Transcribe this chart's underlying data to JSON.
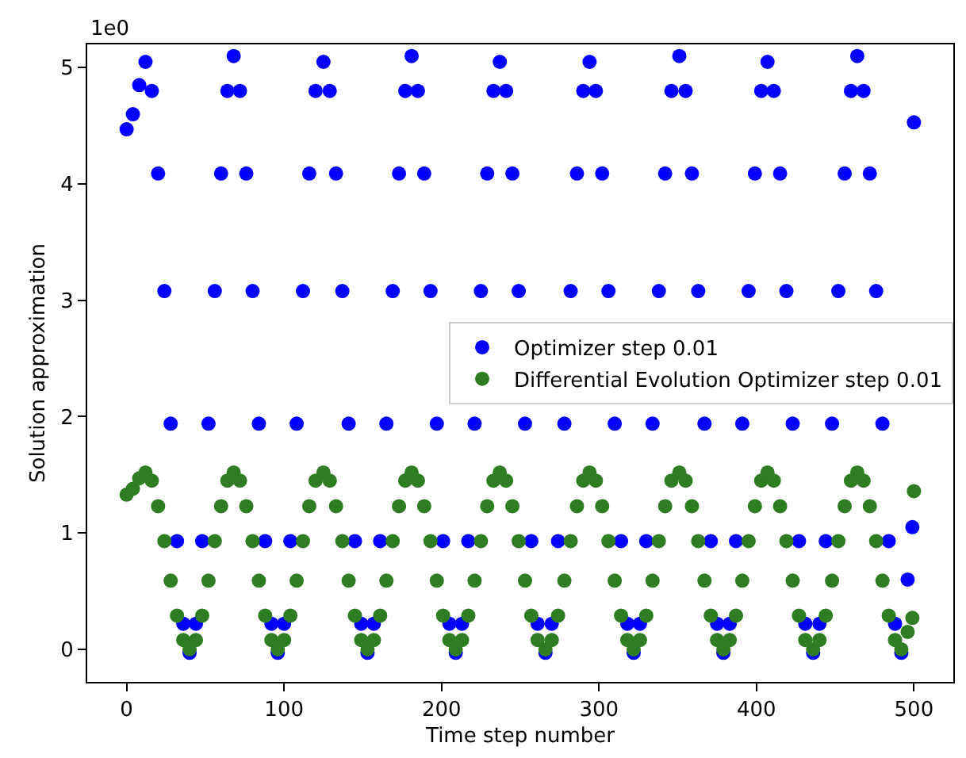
{
  "chart_data": {
    "type": "scatter",
    "xlabel": "Time step number",
    "ylabel": "Solution approximation",
    "annotations": [
      "1e0"
    ],
    "x": [
      0,
      4,
      8,
      12,
      16,
      20,
      24,
      28,
      32,
      36,
      40,
      44,
      48,
      52,
      56,
      60,
      64,
      68,
      72,
      76,
      80,
      84,
      88,
      92,
      96,
      100,
      104,
      108,
      112,
      116,
      120,
      125,
      129,
      133,
      137,
      141,
      145,
      149,
      153,
      157,
      161,
      165,
      169,
      173,
      177,
      181,
      185,
      189,
      193,
      197,
      201,
      205,
      209,
      213,
      217,
      221,
      225,
      229,
      233,
      237,
      241,
      245,
      249,
      253,
      257,
      261,
      266,
      270,
      274,
      278,
      282,
      286,
      290,
      294,
      298,
      302,
      306,
      310,
      314,
      318,
      322,
      326,
      330,
      334,
      338,
      342,
      346,
      351,
      355,
      359,
      363,
      367,
      371,
      375,
      379,
      383,
      387,
      391,
      395,
      399,
      403,
      407,
      411,
      415,
      419,
      423,
      427,
      431,
      436,
      440,
      444,
      448,
      452,
      456,
      460,
      464,
      468,
      472,
      476,
      480,
      484,
      488,
      492,
      496,
      499,
      500
    ],
    "series": [
      {
        "name": "Optimizer step 0.01",
        "color": "#0000ff",
        "values": [
          4.47,
          4.6,
          4.85,
          5.05,
          4.8,
          4.09,
          3.08,
          1.94,
          0.93,
          0.22,
          -0.03,
          0.22,
          0.93,
          1.94,
          3.08,
          4.09,
          4.8,
          5.1,
          4.8,
          4.09,
          3.08,
          1.94,
          0.93,
          0.22,
          -0.03,
          0.22,
          0.93,
          1.94,
          3.08,
          4.09,
          4.8,
          5.05,
          4.8,
          4.09,
          3.08,
          1.94,
          0.93,
          0.22,
          -0.03,
          0.22,
          0.93,
          1.94,
          3.08,
          4.09,
          4.8,
          5.1,
          4.8,
          4.09,
          3.08,
          1.94,
          0.93,
          0.22,
          -0.03,
          0.22,
          0.93,
          1.94,
          3.08,
          4.09,
          4.8,
          5.05,
          4.8,
          4.09,
          3.08,
          1.94,
          0.93,
          0.22,
          -0.03,
          0.22,
          0.93,
          1.94,
          3.08,
          4.09,
          4.8,
          5.05,
          4.8,
          4.09,
          3.08,
          1.94,
          0.93,
          0.22,
          -0.03,
          0.22,
          0.93,
          1.94,
          3.08,
          4.09,
          4.8,
          5.1,
          4.8,
          4.09,
          3.08,
          1.94,
          0.93,
          0.22,
          -0.03,
          0.22,
          0.93,
          1.94,
          3.08,
          4.09,
          4.8,
          5.05,
          4.8,
          4.09,
          3.08,
          1.94,
          0.93,
          0.22,
          -0.03,
          0.22,
          0.93,
          1.94,
          3.08,
          4.09,
          4.8,
          5.1,
          4.8,
          4.09,
          3.08,
          1.94,
          0.93,
          0.22,
          -0.03,
          0.6,
          1.05,
          4.53
        ]
      },
      {
        "name": "Differential Evolution Optimizer step 0.01",
        "color": "#2e7d22",
        "values": [
          1.33,
          1.38,
          1.47,
          1.52,
          1.45,
          1.23,
          0.93,
          0.59,
          0.29,
          0.08,
          0,
          0.08,
          0.29,
          0.59,
          0.93,
          1.23,
          1.45,
          1.52,
          1.45,
          1.23,
          0.93,
          0.59,
          0.29,
          0.08,
          0,
          0.08,
          0.29,
          0.59,
          0.93,
          1.23,
          1.45,
          1.52,
          1.45,
          1.23,
          0.93,
          0.59,
          0.29,
          0.08,
          0,
          0.08,
          0.29,
          0.59,
          0.93,
          1.23,
          1.45,
          1.52,
          1.45,
          1.23,
          0.93,
          0.59,
          0.29,
          0.08,
          0,
          0.08,
          0.29,
          0.59,
          0.93,
          1.23,
          1.45,
          1.52,
          1.45,
          1.23,
          0.93,
          0.59,
          0.29,
          0.08,
          0,
          0.08,
          0.29,
          0.59,
          0.93,
          1.23,
          1.45,
          1.52,
          1.45,
          1.23,
          0.93,
          0.59,
          0.29,
          0.08,
          0,
          0.08,
          0.29,
          0.59,
          0.93,
          1.23,
          1.45,
          1.52,
          1.45,
          1.23,
          0.93,
          0.59,
          0.29,
          0.08,
          0,
          0.08,
          0.29,
          0.59,
          0.93,
          1.23,
          1.45,
          1.52,
          1.45,
          1.23,
          0.93,
          0.59,
          0.29,
          0.08,
          0,
          0.08,
          0.29,
          0.59,
          0.93,
          1.23,
          1.45,
          1.52,
          1.45,
          1.23,
          0.93,
          0.59,
          0.29,
          0.08,
          0,
          0.15,
          0.27,
          1.36
        ]
      }
    ],
    "xlim": [
      -25,
      525
    ],
    "ylim": [
      -0.28,
      5.2
    ],
    "xticks": [
      0,
      100,
      200,
      300,
      400,
      500
    ],
    "yticks": [
      0,
      1,
      2,
      3,
      4,
      5
    ],
    "legend": "right",
    "marker": "circle",
    "grid": false
  }
}
